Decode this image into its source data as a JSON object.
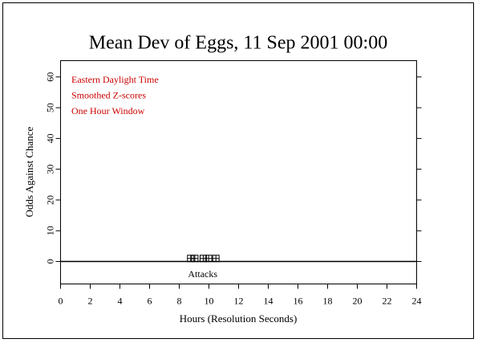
{
  "chart_data": {
    "type": "scatter",
    "title": "Mean Dev of Eggs, 11 Sep 2001 00:00",
    "annotations": [
      "Eastern Daylight Time",
      "Smoothed Z-scores",
      "One Hour Window"
    ],
    "annotation_color": "#cc0000",
    "x_label": "Hours (Resolution Seconds)",
    "y_label": "Odds Against Chance",
    "series": [
      {
        "name": "Attacks",
        "color": "#000000",
        "x": [
          8.77,
          9.05,
          9.62,
          9.98,
          10.47
        ],
        "values": [
          1,
          1,
          1,
          1,
          1
        ]
      }
    ],
    "xlim": [
      0,
      24
    ],
    "xticks": [
      0,
      2,
      4,
      6,
      8,
      10,
      12,
      14,
      16,
      18,
      20,
      22,
      24
    ],
    "ylim": [
      -7.3,
      65.3
    ],
    "yticks": [
      0,
      10,
      20,
      30,
      40,
      50,
      60
    ]
  }
}
